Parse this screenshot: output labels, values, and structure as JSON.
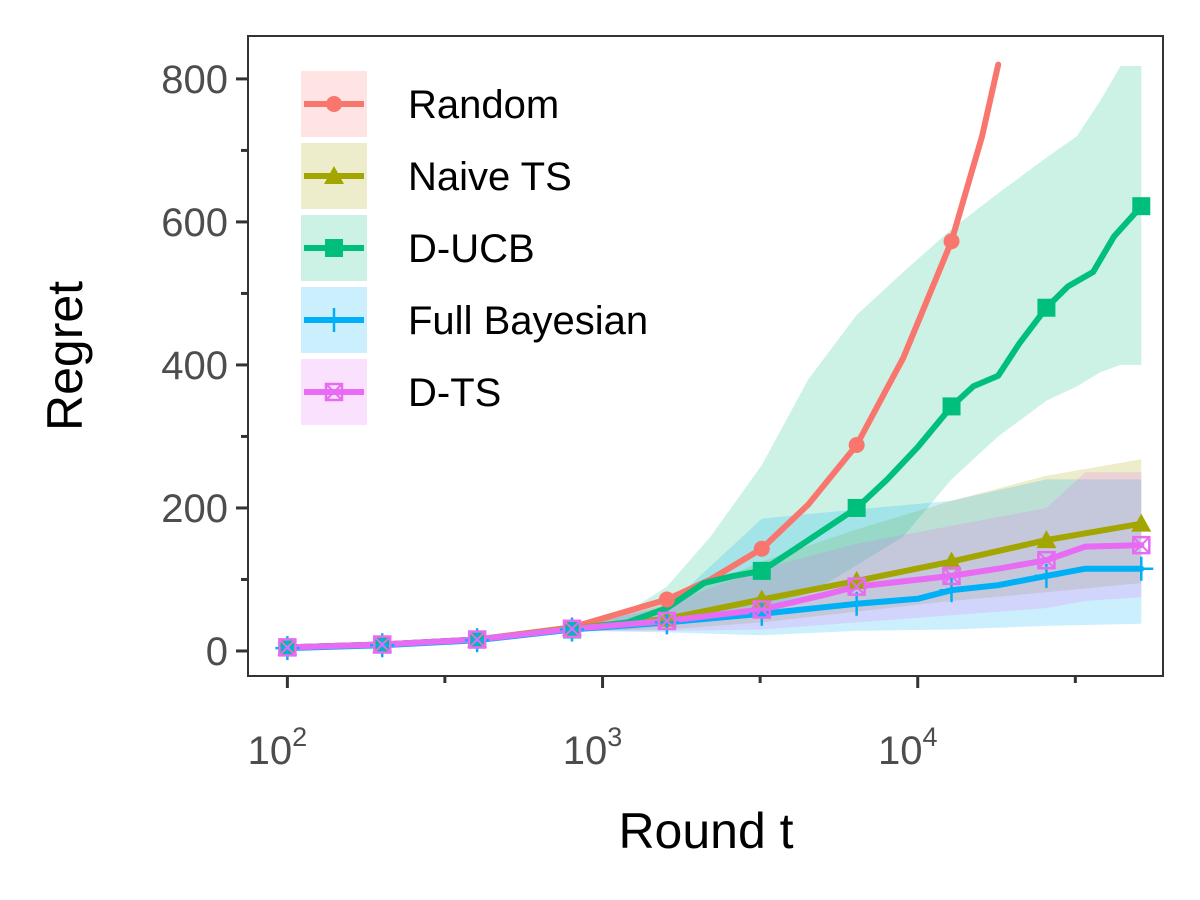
{
  "chart_data": {
    "type": "line",
    "xscale": "log",
    "xlabel": "Round t",
    "ylabel": "Regret",
    "xlim": [
      75,
      60000
    ],
    "ylim": [
      -35,
      860
    ],
    "x_ticks": [
      {
        "value": 100,
        "base": "10",
        "exp": "2"
      },
      {
        "value": 1000,
        "base": "10",
        "exp": "3"
      },
      {
        "value": 10000,
        "base": "10",
        "exp": "4"
      }
    ],
    "x_minor_ticks": [
      316,
      3162,
      31623
    ],
    "y_ticks": [
      {
        "value": 0,
        "label": "0"
      },
      {
        "value": 200,
        "label": "200"
      },
      {
        "value": 400,
        "label": "400"
      },
      {
        "value": 600,
        "label": "600"
      },
      {
        "value": 800,
        "label": "800"
      }
    ],
    "y_minor_ticks": [
      100,
      300,
      500,
      700
    ],
    "legend_position": "top-left",
    "series": [
      {
        "name": "Random",
        "color": "#F8766D",
        "marker": "circle",
        "curve": {
          "x": [
            100,
            200,
            400,
            800,
            1600,
            2200,
            3200,
            4500,
            6400,
            9000,
            12800,
            16000,
            18000
          ],
          "y": [
            5,
            9,
            16,
            33,
            72,
            100,
            143,
            205,
            288,
            410,
            573,
            720,
            820
          ]
        },
        "markers": {
          "x": [
            100,
            200,
            400,
            800,
            1600,
            3200,
            6400,
            12800
          ],
          "y": [
            5,
            9,
            16,
            33,
            72,
            143,
            288,
            573
          ]
        },
        "band": null
      },
      {
        "name": "Naive TS",
        "color": "#A3A500",
        "marker": "triangle",
        "curve": {
          "x": [
            100,
            200,
            400,
            800,
            1600,
            3200,
            6400,
            12800,
            25600,
            51200
          ],
          "y": [
            5,
            9,
            16,
            32,
            45,
            72,
            98,
            125,
            155,
            178
          ]
        },
        "markers": {
          "x": [
            100,
            200,
            400,
            800,
            1600,
            3200,
            6400,
            12800,
            25600,
            51200
          ],
          "y": [
            5,
            9,
            16,
            32,
            45,
            72,
            98,
            125,
            155,
            178
          ]
        },
        "band": {
          "x": [
            800,
            1600,
            3200,
            6400,
            12800,
            25600,
            51200
          ],
          "upper": [
            34,
            70,
            125,
            170,
            210,
            245,
            268
          ],
          "lower": [
            28,
            30,
            40,
            55,
            70,
            82,
            95
          ]
        }
      },
      {
        "name": "D-UCB",
        "color": "#00BF7D",
        "marker": "square",
        "curve": {
          "x": [
            100,
            200,
            400,
            800,
            1200,
            1600,
            2100,
            2600,
            3200,
            4500,
            6400,
            8000,
            10000,
            12800,
            15000,
            18000,
            21000,
            25600,
            30000,
            36000,
            42000,
            51200
          ],
          "y": [
            5,
            9,
            16,
            30,
            40,
            60,
            95,
            105,
            112,
            155,
            200,
            240,
            285,
            342,
            370,
            385,
            430,
            480,
            510,
            530,
            580,
            622
          ]
        },
        "markers": {
          "x": [
            100,
            200,
            400,
            800,
            3200,
            6400,
            12800,
            25600,
            51200
          ],
          "y": [
            5,
            9,
            16,
            30,
            112,
            200,
            342,
            480,
            622
          ]
        },
        "band": {
          "x": [
            800,
            1200,
            1600,
            2200,
            3200,
            4500,
            6400,
            9000,
            12800,
            18000,
            25600,
            32000,
            38000,
            44000,
            51200
          ],
          "upper": [
            36,
            55,
            90,
            160,
            260,
            380,
            470,
            530,
            590,
            640,
            690,
            720,
            770,
            818,
            818
          ],
          "lower": [
            28,
            30,
            35,
            45,
            60,
            80,
            120,
            160,
            240,
            300,
            350,
            370,
            390,
            400,
            400
          ]
        }
      },
      {
        "name": "Full Bayesian",
        "color": "#00B0F6",
        "marker": "plus",
        "curve": {
          "x": [
            100,
            200,
            400,
            800,
            1600,
            3200,
            6400,
            10000,
            12800,
            18000,
            25600,
            34000,
            51200
          ],
          "y": [
            4,
            8,
            15,
            30,
            40,
            52,
            66,
            73,
            85,
            92,
            105,
            115,
            115
          ]
        },
        "markers": {
          "x": [
            100,
            200,
            400,
            800,
            1600,
            3200,
            6400,
            12800,
            25600,
            51200
          ],
          "y": [
            4,
            8,
            15,
            30,
            40,
            52,
            66,
            85,
            105,
            115
          ]
        },
        "band": {
          "x": [
            800,
            1600,
            3200,
            6400,
            12800,
            25600,
            51200
          ],
          "upper": [
            34,
            62,
            185,
            198,
            210,
            240,
            240
          ],
          "lower": [
            28,
            26,
            22,
            28,
            30,
            35,
            38
          ]
        }
      },
      {
        "name": "D-TS",
        "color": "#E76BF3",
        "marker": "boxx",
        "curve": {
          "x": [
            100,
            200,
            400,
            800,
            1600,
            3200,
            5000,
            6400,
            12800,
            18000,
            25600,
            34000,
            51200
          ],
          "y": [
            5,
            9,
            16,
            31,
            42,
            58,
            78,
            90,
            105,
            115,
            127,
            146,
            148
          ]
        },
        "markers": {
          "x": [
            100,
            200,
            400,
            800,
            1600,
            3200,
            6400,
            12800,
            25600,
            51200
          ],
          "y": [
            5,
            9,
            16,
            31,
            42,
            58,
            90,
            105,
            127,
            148
          ]
        },
        "band": {
          "x": [
            800,
            1600,
            3200,
            6400,
            12800,
            25600,
            34000,
            51200
          ],
          "upper": [
            34,
            65,
            115,
            150,
            175,
            200,
            250,
            250
          ],
          "lower": [
            28,
            28,
            30,
            40,
            50,
            60,
            70,
            75
          ]
        }
      }
    ]
  }
}
